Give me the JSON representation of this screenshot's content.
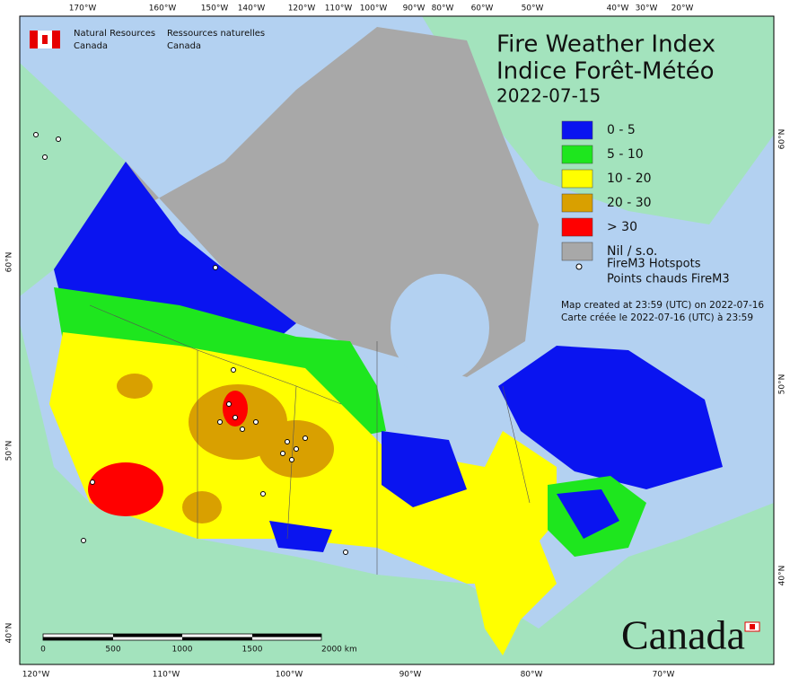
{
  "header": {
    "department_en": [
      "Natural Resources",
      "Canada"
    ],
    "department_fr": [
      "Ressources naturelles",
      "Canada"
    ]
  },
  "title": {
    "en": "Fire Weather Index",
    "fr": "Indice Forêt-Météo",
    "date": "2022-07-15"
  },
  "legend": {
    "classes": [
      {
        "label": "0 - 5",
        "color": "#0a14f0"
      },
      {
        "label": "5 - 10",
        "color": "#1ee61e"
      },
      {
        "label": "10 - 20",
        "color": "#ffff00"
      },
      {
        "label": "20 - 30",
        "color": "#d9a000"
      },
      {
        "label": "> 30",
        "color": "#ff0000"
      },
      {
        "label": "Nil / s.o.",
        "color": "#a8a8a8"
      }
    ],
    "hotspots": [
      "FireM3 Hotspots",
      "Points chauds FireM3"
    ]
  },
  "notes": [
    "Map created at 23:59 (UTC) on 2022-07-16",
    "Carte créée le 2022-07-16 (UTC) à 23:59"
  ],
  "axes": {
    "top": [
      "170°W",
      "160°W",
      "150°W",
      "140°W",
      "120°W",
      "110°W",
      "100°W",
      "90°W",
      "80°W",
      "60°W",
      "50°W",
      "40°W",
      "30°W",
      "20°W"
    ],
    "bottom": [
      "120°W",
      "110°W",
      "100°W",
      "90°W",
      "80°W",
      "70°W"
    ],
    "left": [
      "60°N",
      "50°N",
      "40°N"
    ],
    "right": [
      "60°N",
      "50°N",
      "40°N"
    ]
  },
  "scale_bar": [
    "0",
    "500",
    "1000",
    "1500",
    "2000 km"
  ],
  "wordmark": "Canada"
}
